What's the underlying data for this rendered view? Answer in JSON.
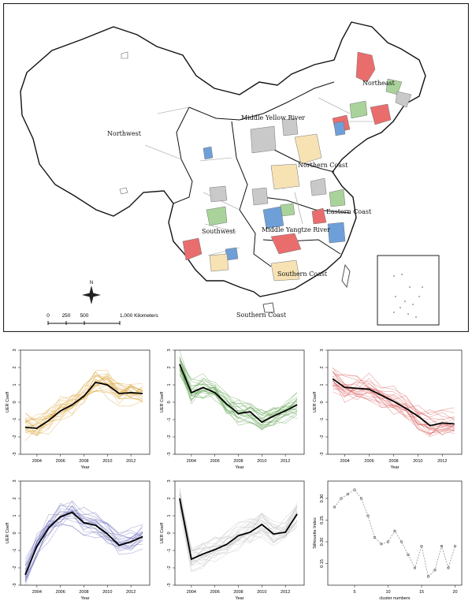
{
  "map": {
    "regions": [
      {
        "name": "Northwest"
      },
      {
        "name": "Middle Yellow River"
      },
      {
        "name": "Northeast"
      },
      {
        "name": "Northern Coast"
      },
      {
        "name": "Eastern Coast"
      },
      {
        "name": "Middle Yangtze River"
      },
      {
        "name": "Southwest"
      },
      {
        "name": "Southern Coast"
      },
      {
        "name": "Southern Coast"
      }
    ],
    "compass": "N",
    "scale": {
      "ticks": [
        "0",
        "250",
        "500",
        "1,000 Kilometers"
      ]
    },
    "colors": {
      "orange": "#f7e2b4",
      "green": "#a9d39a",
      "red": "#e96d6d",
      "blue": "#6f9fd8",
      "gray": "#c9c9c9"
    }
  },
  "chart_data": [
    {
      "type": "line",
      "name_key": "cluster-1",
      "color": "#d9a030",
      "x": [
        2003,
        2004,
        2005,
        2006,
        2007,
        2008,
        2009,
        2010,
        2011,
        2012,
        2013
      ],
      "mean": [
        -1.45,
        -1.5,
        -1.05,
        -0.5,
        -0.15,
        0.35,
        1.15,
        1.0,
        0.5,
        0.55,
        0.5
      ],
      "xlabel": "Year",
      "ylabel": "UER Coeff",
      "xticks": [
        "2004",
        "2006",
        "2008",
        "2010",
        "2012"
      ],
      "yticks": [
        "-3",
        "-2",
        "-1",
        "0",
        "1",
        "2",
        "3"
      ],
      "ylim": [
        -3,
        3
      ]
    },
    {
      "type": "line",
      "name_key": "cluster-2",
      "color": "#5a9e4a",
      "x": [
        2003,
        2004,
        2005,
        2006,
        2007,
        2008,
        2009,
        2010,
        2011,
        2012,
        2013
      ],
      "mean": [
        2.2,
        0.55,
        0.85,
        0.55,
        -0.1,
        -0.65,
        -0.55,
        -1.15,
        -0.8,
        -0.5,
        -0.15
      ],
      "xlabel": "Year",
      "ylabel": "UER Coeff",
      "xticks": [
        "2004",
        "2006",
        "2008",
        "2010",
        "2012"
      ],
      "yticks": [
        "-3",
        "-2",
        "-1",
        "0",
        "1",
        "2",
        "3"
      ],
      "ylim": [
        -3,
        3
      ]
    },
    {
      "type": "line",
      "name_key": "cluster-3",
      "color": "#d85a5a",
      "x": [
        2003,
        2004,
        2005,
        2006,
        2007,
        2008,
        2009,
        2010,
        2011,
        2012,
        2013
      ],
      "mean": [
        1.35,
        0.85,
        0.8,
        0.75,
        0.4,
        0.05,
        -0.35,
        -0.8,
        -1.35,
        -1.2,
        -1.25
      ],
      "xlabel": "Year",
      "ylabel": "UER Coeff",
      "xticks": [
        "2004",
        "2006",
        "2008",
        "2010",
        "2012"
      ],
      "yticks": [
        "-3",
        "-2",
        "-1",
        "0",
        "1",
        "2",
        "3"
      ],
      "ylim": [
        -3,
        3
      ]
    },
    {
      "type": "line",
      "name_key": "cluster-4",
      "color": "#6a6ab8",
      "x": [
        2003,
        2004,
        2005,
        2006,
        2007,
        2008,
        2009,
        2010,
        2011,
        2012,
        2013
      ],
      "mean": [
        -2.4,
        -0.75,
        0.3,
        0.95,
        1.2,
        0.6,
        0.45,
        -0.05,
        -0.7,
        -0.5,
        -0.2
      ],
      "xlabel": "Year",
      "ylabel": "UER Coeff",
      "xticks": [
        "2004",
        "2006",
        "2008",
        "2010",
        "2012"
      ],
      "yticks": [
        "-3",
        "-2",
        "-1",
        "0",
        "1",
        "2",
        "3"
      ],
      "ylim": [
        -3,
        3
      ]
    },
    {
      "type": "line",
      "name_key": "cluster-5",
      "color": "#bdbdbd",
      "x": [
        2003,
        2004,
        2005,
        2006,
        2007,
        2008,
        2009,
        2010,
        2011,
        2012,
        2013
      ],
      "mean": [
        2.0,
        -1.5,
        -1.2,
        -0.95,
        -0.65,
        -0.15,
        0.05,
        0.5,
        -0.05,
        0.05,
        1.1
      ],
      "xlabel": "Year",
      "ylabel": "UER Coeff",
      "xticks": [
        "2004",
        "2006",
        "2008",
        "2010",
        "2012"
      ],
      "yticks": [
        "-3",
        "-2",
        "-1",
        "0",
        "1",
        "2",
        "3"
      ],
      "ylim": [
        -3,
        3
      ]
    },
    {
      "type": "scatter",
      "name_key": "silhouette",
      "color": "#555555",
      "x": [
        2,
        3,
        4,
        5,
        6,
        7,
        8,
        9,
        10,
        11,
        12,
        13,
        14,
        15,
        16,
        17,
        18,
        19,
        20
      ],
      "y": [
        0.28,
        0.3,
        0.31,
        0.32,
        0.3,
        0.26,
        0.21,
        0.195,
        0.2,
        0.225,
        0.2,
        0.17,
        0.14,
        0.19,
        0.12,
        0.135,
        0.19,
        0.14,
        0.19
      ],
      "xlabel": "cluster numbers",
      "ylabel": "Silhouette Index",
      "xticks": [
        "5",
        "10",
        "15",
        "20"
      ],
      "yticks": [
        "0.15",
        "0.20",
        "0.25",
        "0.30"
      ],
      "ylim": [
        0.1,
        0.34
      ],
      "xlim": [
        1,
        21
      ]
    }
  ]
}
